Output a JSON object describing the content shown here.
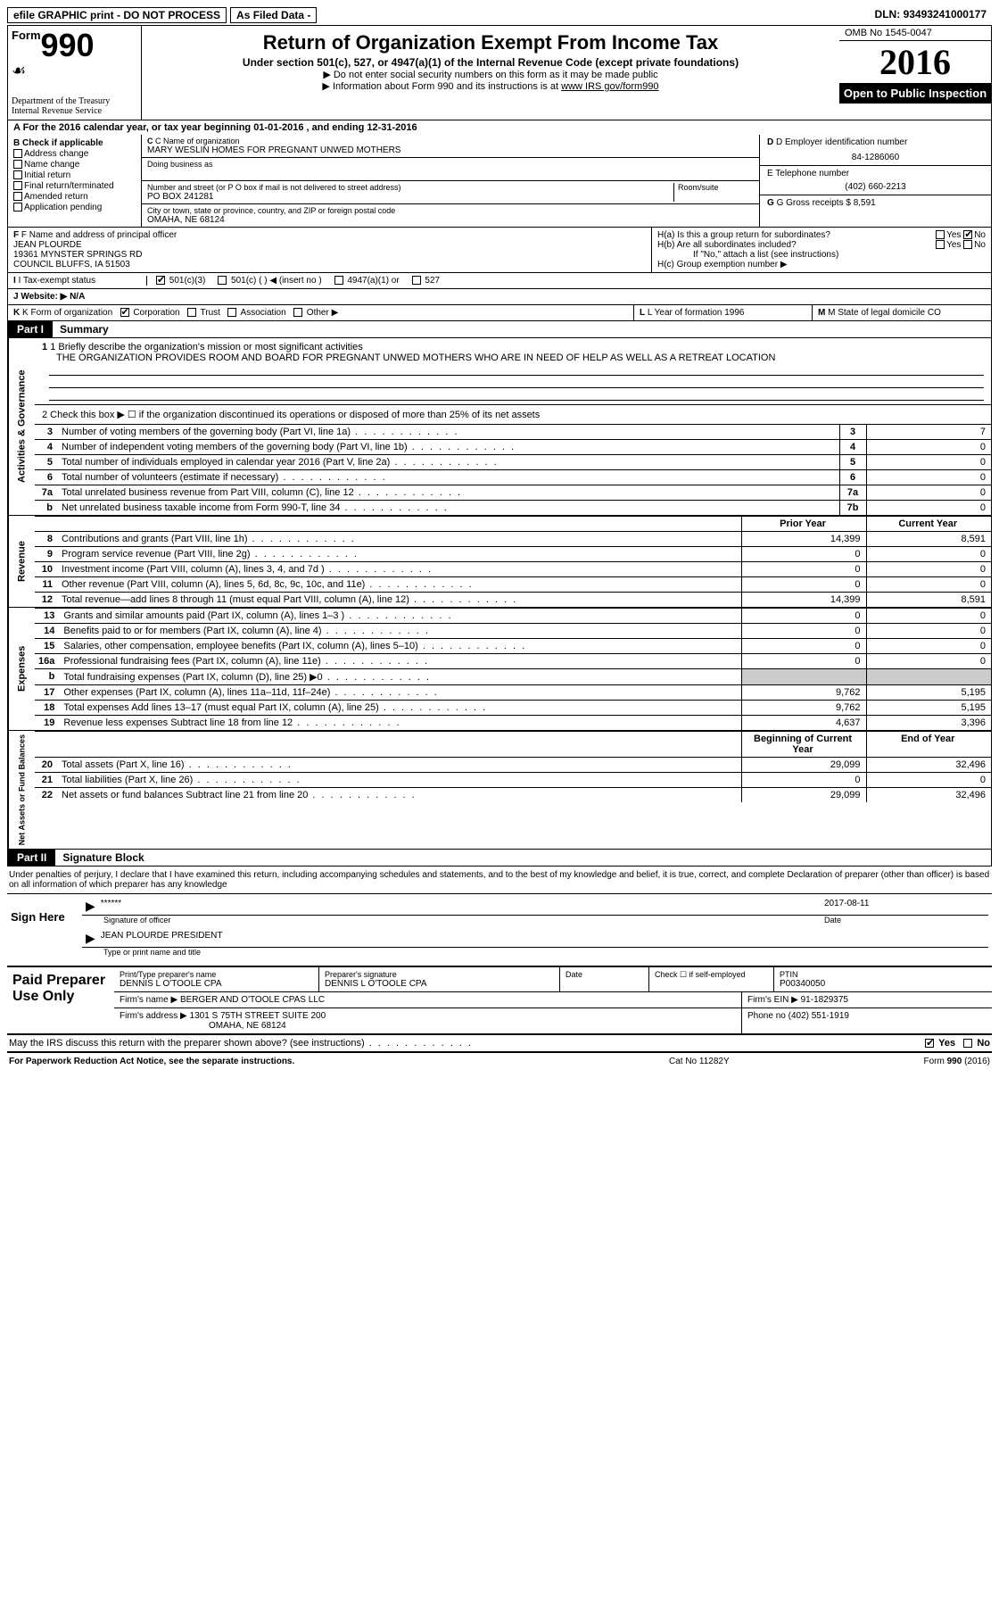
{
  "top_bar": {
    "efile": "efile GRAPHIC print - DO NOT PROCESS",
    "as_filed": "As Filed Data -",
    "dln_label": "DLN:",
    "dln": "93493241000177"
  },
  "header": {
    "form_word": "Form",
    "form_number": "990",
    "dept1": "Department of the Treasury",
    "dept2": "Internal Revenue Service",
    "title": "Return of Organization Exempt From Income Tax",
    "subtitle": "Under section 501(c), 527, or 4947(a)(1) of the Internal Revenue Code (except private foundations)",
    "note1": "▶ Do not enter social security numbers on this form as it may be made public",
    "note2_prefix": "▶ Information about Form 990 and its instructions is at ",
    "note2_link": "www IRS gov/form990",
    "omb": "OMB No  1545-0047",
    "year": "2016",
    "open": "Open to Public Inspection"
  },
  "section_a": "A  For the 2016 calendar year, or tax year beginning 01-01-2016   , and ending 12-31-2016",
  "col_b": {
    "title": "B Check if applicable",
    "items": [
      "Address change",
      "Name change",
      "Initial return",
      "Final return/terminated",
      "Amended return",
      "Application pending"
    ]
  },
  "col_c": {
    "name_label": "C Name of organization",
    "name": "MARY WESLIN HOMES FOR PREGNANT UNWED MOTHERS",
    "dba_label": "Doing business as",
    "addr_label": "Number and street (or P O  box if mail is not delivered to street address)",
    "room_label": "Room/suite",
    "addr": "PO BOX 241281",
    "city_label": "City or town, state or province, country, and ZIP or foreign postal code",
    "city": "OMAHA, NE  68124"
  },
  "col_d": {
    "ein_label": "D Employer identification number",
    "ein": "84-1286060",
    "tel_label": "E Telephone number",
    "tel": "(402) 660-2213",
    "gross_label": "G Gross receipts $",
    "gross": "8,591"
  },
  "row_f": {
    "label": "F  Name and address of principal officer",
    "name": "JEAN PLOURDE",
    "addr1": "19361 MYNSTER SPRINGS RD",
    "addr2": "COUNCIL BLUFFS, IA  51503"
  },
  "row_h": {
    "a": "H(a)  Is this a group return for subordinates?",
    "b": "H(b)  Are all subordinates included?",
    "b_note": "If \"No,\" attach a list  (see instructions)",
    "c": "H(c)  Group exemption number ▶"
  },
  "row_i": {
    "label": "I   Tax-exempt status",
    "c3": "501(c)(3)",
    "c": "501(c) (  ) ◀ (insert no )",
    "a1": "4947(a)(1) or",
    "527": "527"
  },
  "row_j": {
    "j": "J   Website: ▶   N/A"
  },
  "row_k": {
    "k": "K Form of organization",
    "corp": "Corporation",
    "trust": "Trust",
    "assoc": "Association",
    "other": "Other ▶",
    "l_label": "L Year of formation",
    "l_val": "1996",
    "m_label": "M State of legal domicile",
    "m_val": "CO"
  },
  "part1": {
    "header": "Part I",
    "title": "Summary",
    "q1_label": "1  Briefly describe the organization's mission or most significant activities",
    "q1_text": "THE ORGANIZATION PROVIDES ROOM AND BOARD FOR PREGNANT UNWED MOTHERS WHO ARE IN NEED OF HELP AS WELL AS A RETREAT LOCATION",
    "q2": "2   Check this box ▶ ☐ if the organization discontinued its operations or disposed of more than 25% of its net assets",
    "governance_label": "Activities & Governance",
    "revenue_label": "Revenue",
    "expenses_label": "Expenses",
    "netassets_label": "Net Assets or Fund Balances",
    "prior_hdr": "Prior Year",
    "current_hdr": "Current Year",
    "begin_hdr": "Beginning of Current Year",
    "end_hdr": "End of Year",
    "gov_rows": [
      {
        "n": "3",
        "t": "Number of voting members of the governing body (Part VI, line 1a)",
        "box": "3",
        "v": "7"
      },
      {
        "n": "4",
        "t": "Number of independent voting members of the governing body (Part VI, line 1b)",
        "box": "4",
        "v": "0"
      },
      {
        "n": "5",
        "t": "Total number of individuals employed in calendar year 2016 (Part V, line 2a)",
        "box": "5",
        "v": "0"
      },
      {
        "n": "6",
        "t": "Total number of volunteers (estimate if necessary)",
        "box": "6",
        "v": "0"
      },
      {
        "n": "7a",
        "t": "Total unrelated business revenue from Part VIII, column (C), line 12",
        "box": "7a",
        "v": "0"
      },
      {
        "n": "b",
        "t": "Net unrelated business taxable income from Form 990-T, line 34",
        "box": "7b",
        "v": "0"
      }
    ],
    "rev_rows": [
      {
        "n": "8",
        "t": "Contributions and grants (Part VIII, line 1h)",
        "p": "14,399",
        "c": "8,591"
      },
      {
        "n": "9",
        "t": "Program service revenue (Part VIII, line 2g)",
        "p": "0",
        "c": "0"
      },
      {
        "n": "10",
        "t": "Investment income (Part VIII, column (A), lines 3, 4, and 7d )",
        "p": "0",
        "c": "0"
      },
      {
        "n": "11",
        "t": "Other revenue (Part VIII, column (A), lines 5, 6d, 8c, 9c, 10c, and 11e)",
        "p": "0",
        "c": "0"
      },
      {
        "n": "12",
        "t": "Total revenue—add lines 8 through 11 (must equal Part VIII, column (A), line 12)",
        "p": "14,399",
        "c": "8,591"
      }
    ],
    "exp_rows": [
      {
        "n": "13",
        "t": "Grants and similar amounts paid (Part IX, column (A), lines 1–3 )",
        "p": "0",
        "c": "0"
      },
      {
        "n": "14",
        "t": "Benefits paid to or for members (Part IX, column (A), line 4)",
        "p": "0",
        "c": "0"
      },
      {
        "n": "15",
        "t": "Salaries, other compensation, employee benefits (Part IX, column (A), lines 5–10)",
        "p": "0",
        "c": "0"
      },
      {
        "n": "16a",
        "t": "Professional fundraising fees (Part IX, column (A), line 11e)",
        "p": "0",
        "c": "0"
      },
      {
        "n": "b",
        "t": "Total fundraising expenses (Part IX, column (D), line 25) ▶0",
        "p": "",
        "c": "",
        "shade": true
      },
      {
        "n": "17",
        "t": "Other expenses (Part IX, column (A), lines 11a–11d, 11f–24e)",
        "p": "9,762",
        "c": "5,195"
      },
      {
        "n": "18",
        "t": "Total expenses  Add lines 13–17 (must equal Part IX, column (A), line 25)",
        "p": "9,762",
        "c": "5,195"
      },
      {
        "n": "19",
        "t": "Revenue less expenses  Subtract line 18 from line 12",
        "p": "4,637",
        "c": "3,396"
      }
    ],
    "net_rows": [
      {
        "n": "20",
        "t": "Total assets (Part X, line 16)",
        "p": "29,099",
        "c": "32,496"
      },
      {
        "n": "21",
        "t": "Total liabilities (Part X, line 26)",
        "p": "0",
        "c": "0"
      },
      {
        "n": "22",
        "t": "Net assets or fund balances  Subtract line 21 from line 20",
        "p": "29,099",
        "c": "32,496"
      }
    ]
  },
  "part2": {
    "header": "Part II",
    "title": "Signature Block",
    "declaration": "Under penalties of perjury, I declare that I have examined this return, including accompanying schedules and statements, and to the best of my knowledge and belief, it is true, correct, and complete  Declaration of preparer (other than officer) is based on all information of which preparer has any knowledge",
    "sign_here": "Sign Here",
    "sig_stars": "******",
    "sig_date": "2017-08-11",
    "sig_officer_label": "Signature of officer",
    "date_label": "Date",
    "name_title": "JEAN PLOURDE PRESIDENT",
    "name_title_label": "Type or print name and title"
  },
  "preparer": {
    "header": "Paid Preparer Use Only",
    "r1": {
      "name_label": "Print/Type preparer's name",
      "name": "DENNIS L O'TOOLE CPA",
      "sig_label": "Preparer's signature",
      "sig": "DENNIS L O'TOOLE CPA",
      "date_label": "Date",
      "check_label": "Check ☐ if self-employed",
      "ptin_label": "PTIN",
      "ptin": "P00340050"
    },
    "r2": {
      "firm_name_label": "Firm's name    ▶",
      "firm_name": "BERGER AND O'TOOLE CPAS LLC",
      "ein_label": "Firm's EIN ▶",
      "ein": "91-1829375"
    },
    "r3": {
      "addr_label": "Firm's address ▶",
      "addr1": "1301 S 75TH STREET SUITE 200",
      "addr2": "OMAHA, NE  68124",
      "phone_label": "Phone no",
      "phone": "(402) 551-1919"
    }
  },
  "footer": {
    "discuss": "May the IRS discuss this return with the preparer shown above? (see instructions)",
    "yes": "Yes",
    "no": "No",
    "paperwork": "For Paperwork Reduction Act Notice, see the separate instructions.",
    "cat": "Cat  No  11282Y",
    "form": "Form 990 (2016)"
  }
}
